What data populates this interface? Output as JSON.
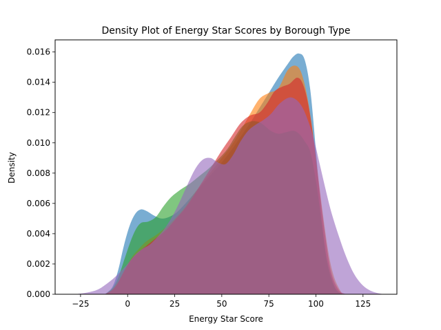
{
  "chart_data": {
    "type": "area",
    "title": "Density Plot of Energy Star Scores by Borough Type",
    "xlabel": "Energy Star Score",
    "ylabel": "Density",
    "xlim": [
      -38.5,
      143
    ],
    "ylim": [
      0,
      0.0168
    ],
    "xticks": [
      -25,
      0,
      25,
      50,
      75,
      100,
      125
    ],
    "xtick_labels": [
      "−25",
      "0",
      "25",
      "50",
      "75",
      "100",
      "125"
    ],
    "yticks": [
      0,
      0.002,
      0.004,
      0.006,
      0.008,
      0.01,
      0.012,
      0.014,
      0.016
    ],
    "ytick_labels": [
      "0.000",
      "0.002",
      "0.004",
      "0.006",
      "0.008",
      "0.010",
      "0.012",
      "0.014",
      "0.016"
    ],
    "grid": false,
    "legend": "none",
    "fill_opacity": 0.6,
    "series": [
      {
        "color": "#1f77b4",
        "points": [
          [
            -12,
            0
          ],
          [
            -8,
            0.0005
          ],
          [
            -5,
            0.0016
          ],
          [
            -2,
            0.0032
          ],
          [
            1,
            0.0045
          ],
          [
            4,
            0.0053
          ],
          [
            7,
            0.0056
          ],
          [
            10,
            0.0055
          ],
          [
            14,
            0.0052
          ],
          [
            18,
            0.005
          ],
          [
            22,
            0.0051
          ],
          [
            26,
            0.0054
          ],
          [
            30,
            0.0059
          ],
          [
            35,
            0.0066
          ],
          [
            40,
            0.0073
          ],
          [
            45,
            0.008
          ],
          [
            50,
            0.0087
          ],
          [
            55,
            0.0095
          ],
          [
            60,
            0.0104
          ],
          [
            65,
            0.0113
          ],
          [
            70,
            0.0123
          ],
          [
            75,
            0.0133
          ],
          [
            80,
            0.0143
          ],
          [
            85,
            0.0152
          ],
          [
            88,
            0.0157
          ],
          [
            91,
            0.0159
          ],
          [
            94,
            0.0155
          ],
          [
            97,
            0.0135
          ],
          [
            100,
            0.0095
          ],
          [
            103,
            0.005
          ],
          [
            106,
            0.002
          ],
          [
            110,
            0.0004
          ],
          [
            114,
            0
          ]
        ]
      },
      {
        "color": "#ff7f0e",
        "points": [
          [
            -12,
            0
          ],
          [
            -8,
            0.0003
          ],
          [
            -5,
            0.0008
          ],
          [
            -2,
            0.0015
          ],
          [
            2,
            0.0024
          ],
          [
            6,
            0.003
          ],
          [
            10,
            0.0035
          ],
          [
            15,
            0.0039
          ],
          [
            20,
            0.0044
          ],
          [
            25,
            0.005
          ],
          [
            30,
            0.0057
          ],
          [
            35,
            0.0066
          ],
          [
            40,
            0.0074
          ],
          [
            45,
            0.0082
          ],
          [
            50,
            0.009
          ],
          [
            55,
            0.0098
          ],
          [
            60,
            0.0108
          ],
          [
            65,
            0.0119
          ],
          [
            70,
            0.0129
          ],
          [
            75,
            0.0133
          ],
          [
            80,
            0.0136
          ],
          [
            85,
            0.0148
          ],
          [
            89,
            0.0151
          ],
          [
            92,
            0.0147
          ],
          [
            95,
            0.0133
          ],
          [
            98,
            0.011
          ],
          [
            101,
            0.008
          ],
          [
            104,
            0.005
          ],
          [
            107,
            0.0025
          ],
          [
            110,
            0.001
          ],
          [
            114,
            0
          ]
        ]
      },
      {
        "color": "#2ca02c",
        "points": [
          [
            -12,
            0
          ],
          [
            -8,
            0.0004
          ],
          [
            -5,
            0.0011
          ],
          [
            -2,
            0.0022
          ],
          [
            1,
            0.0033
          ],
          [
            4,
            0.0042
          ],
          [
            7,
            0.0047
          ],
          [
            11,
            0.0048
          ],
          [
            15,
            0.0051
          ],
          [
            19,
            0.0058
          ],
          [
            23,
            0.0064
          ],
          [
            28,
            0.0069
          ],
          [
            33,
            0.0073
          ],
          [
            38,
            0.0078
          ],
          [
            43,
            0.0083
          ],
          [
            48,
            0.0089
          ],
          [
            53,
            0.0096
          ],
          [
            57,
            0.0104
          ],
          [
            61,
            0.0111
          ],
          [
            65,
            0.0114
          ],
          [
            69,
            0.0114
          ],
          [
            72,
            0.0112
          ],
          [
            76,
            0.0108
          ],
          [
            80,
            0.0106
          ],
          [
            84,
            0.0107
          ],
          [
            88,
            0.0108
          ],
          [
            91,
            0.0106
          ],
          [
            94,
            0.0101
          ],
          [
            97,
            0.0094
          ],
          [
            100,
            0.0075
          ],
          [
            103,
            0.0048
          ],
          [
            106,
            0.0022
          ],
          [
            110,
            0.0005
          ],
          [
            114,
            0
          ]
        ]
      },
      {
        "color": "#d62728",
        "points": [
          [
            -12,
            0
          ],
          [
            -8,
            0.0003
          ],
          [
            -5,
            0.0008
          ],
          [
            -2,
            0.0015
          ],
          [
            2,
            0.0023
          ],
          [
            6,
            0.0028
          ],
          [
            10,
            0.0032
          ],
          [
            15,
            0.0037
          ],
          [
            20,
            0.0042
          ],
          [
            25,
            0.0049
          ],
          [
            30,
            0.0056
          ],
          [
            35,
            0.0065
          ],
          [
            40,
            0.0075
          ],
          [
            45,
            0.0085
          ],
          [
            50,
            0.0095
          ],
          [
            55,
            0.0104
          ],
          [
            60,
            0.0113
          ],
          [
            65,
            0.0118
          ],
          [
            70,
            0.012
          ],
          [
            74,
            0.0126
          ],
          [
            78,
            0.0134
          ],
          [
            82,
            0.0137
          ],
          [
            86,
            0.0139
          ],
          [
            90,
            0.0143
          ],
          [
            93,
            0.0139
          ],
          [
            96,
            0.0125
          ],
          [
            99,
            0.01
          ],
          [
            102,
            0.0068
          ],
          [
            105,
            0.0038
          ],
          [
            108,
            0.0015
          ],
          [
            112,
            0.0003
          ],
          [
            116,
            0
          ]
        ]
      },
      {
        "color": "#9467bd",
        "points": [
          [
            -28,
            0
          ],
          [
            -22,
            0.0001
          ],
          [
            -16,
            0.0003
          ],
          [
            -11,
            0.0007
          ],
          [
            -7,
            0.0011
          ],
          [
            -3,
            0.0016
          ],
          [
            0,
            0.002
          ],
          [
            4,
            0.0026
          ],
          [
            8,
            0.003
          ],
          [
            12,
            0.0033
          ],
          [
            16,
            0.0038
          ],
          [
            20,
            0.0044
          ],
          [
            24,
            0.0052
          ],
          [
            28,
            0.0062
          ],
          [
            32,
            0.0073
          ],
          [
            36,
            0.0083
          ],
          [
            40,
            0.0089
          ],
          [
            44,
            0.009
          ],
          [
            48,
            0.0087
          ],
          [
            52,
            0.0086
          ],
          [
            56,
            0.0092
          ],
          [
            60,
            0.0101
          ],
          [
            64,
            0.0108
          ],
          [
            68,
            0.0112
          ],
          [
            72,
            0.0115
          ],
          [
            76,
            0.0119
          ],
          [
            80,
            0.0125
          ],
          [
            84,
            0.0129
          ],
          [
            87,
            0.013
          ],
          [
            90,
            0.0128
          ],
          [
            93,
            0.0123
          ],
          [
            96,
            0.0114
          ],
          [
            99,
            0.0102
          ],
          [
            102,
            0.0086
          ],
          [
            105,
            0.007
          ],
          [
            108,
            0.0055
          ],
          [
            112,
            0.0039
          ],
          [
            116,
            0.0025
          ],
          [
            120,
            0.0014
          ],
          [
            124,
            0.0007
          ],
          [
            128,
            0.0003
          ],
          [
            132,
            0.0001
          ],
          [
            136,
            0
          ]
        ]
      }
    ]
  }
}
